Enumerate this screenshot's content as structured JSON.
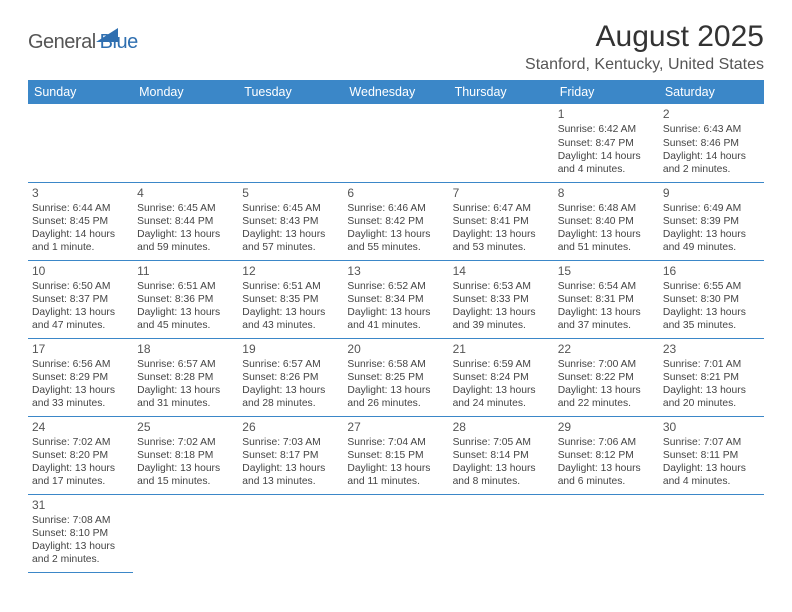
{
  "logo": {
    "general": "General",
    "blue": "Blue"
  },
  "title": "August 2025",
  "location": "Stanford, Kentucky, United States",
  "colors": {
    "header_bg": "#3b87c8",
    "header_text": "#ffffff",
    "border": "#3b87c8",
    "logo_blue": "#2f6fb0",
    "text": "#444444"
  },
  "weekdays": [
    "Sunday",
    "Monday",
    "Tuesday",
    "Wednesday",
    "Thursday",
    "Friday",
    "Saturday"
  ],
  "weeks": [
    [
      null,
      null,
      null,
      null,
      null,
      {
        "n": "1",
        "sr": "Sunrise: 6:42 AM",
        "ss": "Sunset: 8:47 PM",
        "d1": "Daylight: 14 hours",
        "d2": "and 4 minutes."
      },
      {
        "n": "2",
        "sr": "Sunrise: 6:43 AM",
        "ss": "Sunset: 8:46 PM",
        "d1": "Daylight: 14 hours",
        "d2": "and 2 minutes."
      }
    ],
    [
      {
        "n": "3",
        "sr": "Sunrise: 6:44 AM",
        "ss": "Sunset: 8:45 PM",
        "d1": "Daylight: 14 hours",
        "d2": "and 1 minute."
      },
      {
        "n": "4",
        "sr": "Sunrise: 6:45 AM",
        "ss": "Sunset: 8:44 PM",
        "d1": "Daylight: 13 hours",
        "d2": "and 59 minutes."
      },
      {
        "n": "5",
        "sr": "Sunrise: 6:45 AM",
        "ss": "Sunset: 8:43 PM",
        "d1": "Daylight: 13 hours",
        "d2": "and 57 minutes."
      },
      {
        "n": "6",
        "sr": "Sunrise: 6:46 AM",
        "ss": "Sunset: 8:42 PM",
        "d1": "Daylight: 13 hours",
        "d2": "and 55 minutes."
      },
      {
        "n": "7",
        "sr": "Sunrise: 6:47 AM",
        "ss": "Sunset: 8:41 PM",
        "d1": "Daylight: 13 hours",
        "d2": "and 53 minutes."
      },
      {
        "n": "8",
        "sr": "Sunrise: 6:48 AM",
        "ss": "Sunset: 8:40 PM",
        "d1": "Daylight: 13 hours",
        "d2": "and 51 minutes."
      },
      {
        "n": "9",
        "sr": "Sunrise: 6:49 AM",
        "ss": "Sunset: 8:39 PM",
        "d1": "Daylight: 13 hours",
        "d2": "and 49 minutes."
      }
    ],
    [
      {
        "n": "10",
        "sr": "Sunrise: 6:50 AM",
        "ss": "Sunset: 8:37 PM",
        "d1": "Daylight: 13 hours",
        "d2": "and 47 minutes."
      },
      {
        "n": "11",
        "sr": "Sunrise: 6:51 AM",
        "ss": "Sunset: 8:36 PM",
        "d1": "Daylight: 13 hours",
        "d2": "and 45 minutes."
      },
      {
        "n": "12",
        "sr": "Sunrise: 6:51 AM",
        "ss": "Sunset: 8:35 PM",
        "d1": "Daylight: 13 hours",
        "d2": "and 43 minutes."
      },
      {
        "n": "13",
        "sr": "Sunrise: 6:52 AM",
        "ss": "Sunset: 8:34 PM",
        "d1": "Daylight: 13 hours",
        "d2": "and 41 minutes."
      },
      {
        "n": "14",
        "sr": "Sunrise: 6:53 AM",
        "ss": "Sunset: 8:33 PM",
        "d1": "Daylight: 13 hours",
        "d2": "and 39 minutes."
      },
      {
        "n": "15",
        "sr": "Sunrise: 6:54 AM",
        "ss": "Sunset: 8:31 PM",
        "d1": "Daylight: 13 hours",
        "d2": "and 37 minutes."
      },
      {
        "n": "16",
        "sr": "Sunrise: 6:55 AM",
        "ss": "Sunset: 8:30 PM",
        "d1": "Daylight: 13 hours",
        "d2": "and 35 minutes."
      }
    ],
    [
      {
        "n": "17",
        "sr": "Sunrise: 6:56 AM",
        "ss": "Sunset: 8:29 PM",
        "d1": "Daylight: 13 hours",
        "d2": "and 33 minutes."
      },
      {
        "n": "18",
        "sr": "Sunrise: 6:57 AM",
        "ss": "Sunset: 8:28 PM",
        "d1": "Daylight: 13 hours",
        "d2": "and 31 minutes."
      },
      {
        "n": "19",
        "sr": "Sunrise: 6:57 AM",
        "ss": "Sunset: 8:26 PM",
        "d1": "Daylight: 13 hours",
        "d2": "and 28 minutes."
      },
      {
        "n": "20",
        "sr": "Sunrise: 6:58 AM",
        "ss": "Sunset: 8:25 PM",
        "d1": "Daylight: 13 hours",
        "d2": "and 26 minutes."
      },
      {
        "n": "21",
        "sr": "Sunrise: 6:59 AM",
        "ss": "Sunset: 8:24 PM",
        "d1": "Daylight: 13 hours",
        "d2": "and 24 minutes."
      },
      {
        "n": "22",
        "sr": "Sunrise: 7:00 AM",
        "ss": "Sunset: 8:22 PM",
        "d1": "Daylight: 13 hours",
        "d2": "and 22 minutes."
      },
      {
        "n": "23",
        "sr": "Sunrise: 7:01 AM",
        "ss": "Sunset: 8:21 PM",
        "d1": "Daylight: 13 hours",
        "d2": "and 20 minutes."
      }
    ],
    [
      {
        "n": "24",
        "sr": "Sunrise: 7:02 AM",
        "ss": "Sunset: 8:20 PM",
        "d1": "Daylight: 13 hours",
        "d2": "and 17 minutes."
      },
      {
        "n": "25",
        "sr": "Sunrise: 7:02 AM",
        "ss": "Sunset: 8:18 PM",
        "d1": "Daylight: 13 hours",
        "d2": "and 15 minutes."
      },
      {
        "n": "26",
        "sr": "Sunrise: 7:03 AM",
        "ss": "Sunset: 8:17 PM",
        "d1": "Daylight: 13 hours",
        "d2": "and 13 minutes."
      },
      {
        "n": "27",
        "sr": "Sunrise: 7:04 AM",
        "ss": "Sunset: 8:15 PM",
        "d1": "Daylight: 13 hours",
        "d2": "and 11 minutes."
      },
      {
        "n": "28",
        "sr": "Sunrise: 7:05 AM",
        "ss": "Sunset: 8:14 PM",
        "d1": "Daylight: 13 hours",
        "d2": "and 8 minutes."
      },
      {
        "n": "29",
        "sr": "Sunrise: 7:06 AM",
        "ss": "Sunset: 8:12 PM",
        "d1": "Daylight: 13 hours",
        "d2": "and 6 minutes."
      },
      {
        "n": "30",
        "sr": "Sunrise: 7:07 AM",
        "ss": "Sunset: 8:11 PM",
        "d1": "Daylight: 13 hours",
        "d2": "and 4 minutes."
      }
    ],
    [
      {
        "n": "31",
        "sr": "Sunrise: 7:08 AM",
        "ss": "Sunset: 8:10 PM",
        "d1": "Daylight: 13 hours",
        "d2": "and 2 minutes."
      },
      null,
      null,
      null,
      null,
      null,
      null
    ]
  ]
}
